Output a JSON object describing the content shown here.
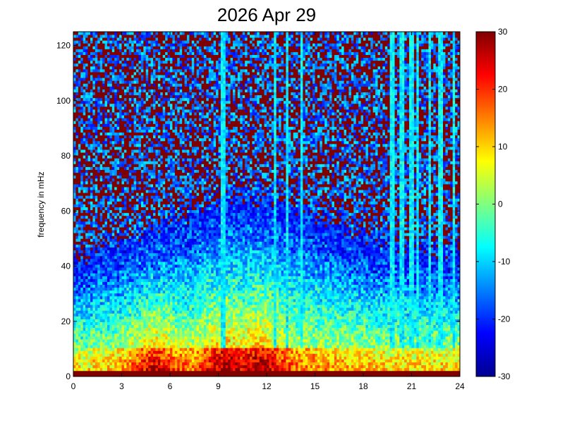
{
  "chart_data": {
    "type": "heatmap",
    "title": "2026 Apr 29",
    "xlabel": "",
    "ylabel": "frequency in mHz",
    "xlim": [
      0,
      24
    ],
    "ylim": [
      0,
      125
    ],
    "xticks": [
      0,
      3,
      6,
      9,
      12,
      15,
      18,
      21,
      24
    ],
    "yticks": [
      0,
      20,
      40,
      60,
      80,
      100,
      120
    ],
    "colorbar": {
      "range": [
        -30,
        30
      ],
      "ticks": [
        -30,
        -20,
        -10,
        0,
        10,
        20,
        30
      ],
      "colormap": "jet"
    },
    "grid": false,
    "description_of_data": {
      "baseline_rows_value": 30,
      "high_frequency_background": 30,
      "vertical_streaks_hours": [
        9.3,
        12.5,
        13.3,
        14.2,
        19.8,
        20.4,
        21.0,
        21.4,
        22.1,
        22.8,
        23.6
      ],
      "low_frequency_peak_hours": [
        5.0,
        9.5,
        11.5
      ]
    }
  }
}
